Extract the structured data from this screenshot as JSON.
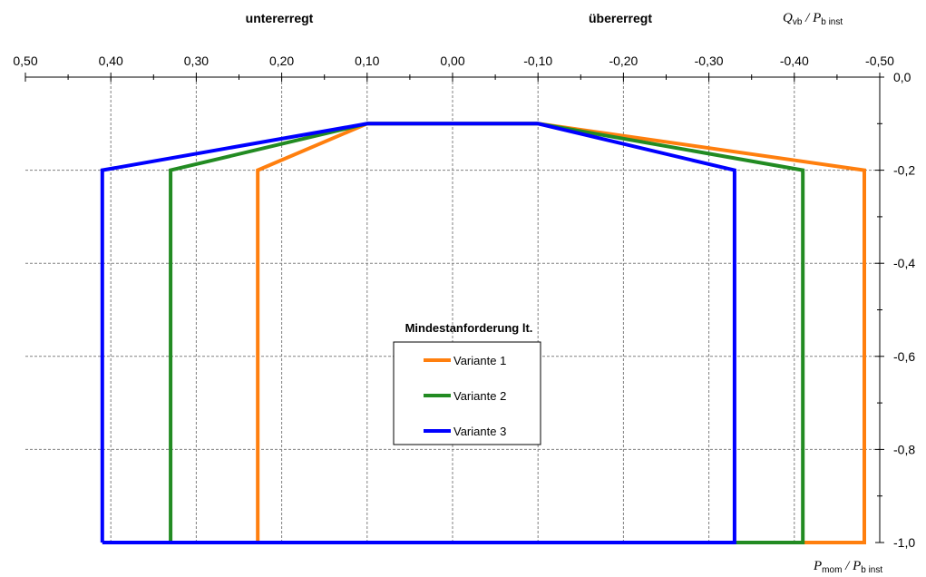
{
  "chart_data": {
    "type": "line",
    "region_labels": {
      "left": "untererregt",
      "right": "übererregt"
    },
    "y_axis_title": {
      "main_q": "Q",
      "sub_q": "vb",
      "slash": " / ",
      "main_p": "P",
      "sub_p": "b inst"
    },
    "x_axis_title": {
      "main_p": "P",
      "sub_p": "mom",
      "slash": " / ",
      "main_pb": "P",
      "sub_pb": "b inst"
    },
    "xlim": [
      0.5,
      -0.5
    ],
    "ylim": [
      0.0,
      -1.0
    ],
    "x_reversed": true,
    "x_ticks": [
      "0,50",
      "0,40",
      "0,30",
      "0,20",
      "0,10",
      "0,00",
      "-0,10",
      "-0,20",
      "-0,30",
      "-0,40",
      "-0,50"
    ],
    "x_tick_values": [
      0.5,
      0.4,
      0.3,
      0.2,
      0.1,
      0.0,
      -0.1,
      -0.2,
      -0.3,
      -0.4,
      -0.5
    ],
    "y_ticks": [
      "0,0",
      "-0,2",
      "-0,4",
      "-0,6",
      "-0,8",
      "-1,0"
    ],
    "y_tick_values": [
      0.0,
      -0.2,
      -0.4,
      -0.6,
      -0.8,
      -1.0
    ],
    "grid": true,
    "legend": {
      "title": "Mindestanforderung lt.",
      "placement": "center"
    },
    "series": [
      {
        "name": "Variante 1",
        "color": "#ff7f0e",
        "x": [
          0.228,
          0.228,
          0.1,
          -0.1,
          -0.482,
          -0.482,
          0.228
        ],
        "y": [
          -1.0,
          -0.2,
          -0.1,
          -0.1,
          -0.2,
          -1.0,
          -1.0
        ]
      },
      {
        "name": "Variante 2",
        "color": "#228b22",
        "x": [
          0.33,
          0.33,
          0.1,
          -0.1,
          -0.41,
          -0.41,
          0.33
        ],
        "y": [
          -1.0,
          -0.2,
          -0.1,
          -0.1,
          -0.2,
          -1.0,
          -1.0
        ]
      },
      {
        "name": "Variante 3",
        "color": "#0000ff",
        "x": [
          0.41,
          0.41,
          0.1,
          -0.1,
          -0.33,
          -0.33,
          0.41
        ],
        "y": [
          -1.0,
          -0.2,
          -0.1,
          -0.1,
          -0.2,
          -1.0,
          -1.0
        ]
      }
    ]
  }
}
